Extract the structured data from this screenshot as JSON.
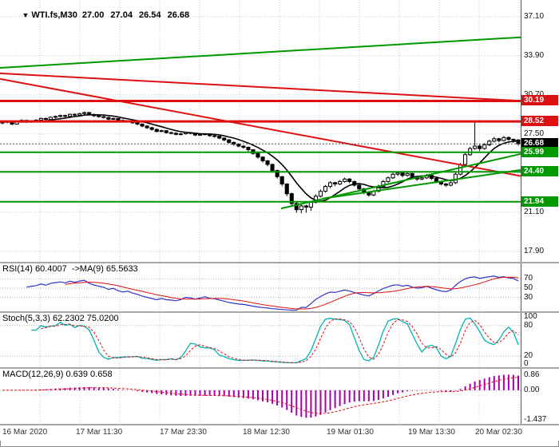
{
  "header": {
    "symbol": "WTI.fs,M30",
    "ohlc": "27.00 27.04 26.54 26.68"
  },
  "pane_labels": {
    "rsi": "RSI(14) 60.4007  ->MA(9) 65.5633",
    "stoch": "Stoch(5,3,3) 62.2302 75.0200",
    "macd": "MACD(12,26,9) 0.639 0.658"
  },
  "colors": {
    "red": "#dd1111",
    "green": "#009900",
    "grid": "#c9c9c9",
    "rsi": "#3333cc",
    "stoch": "#00b3b3",
    "macd": "#a800a8",
    "bull": "#ffffff",
    "bear": "#000000",
    "ma": "#000000"
  },
  "chart_data": {
    "type": "candlestick",
    "symbol": "WTI.fs,M30",
    "timeframe": "M30",
    "title": "WTI.fs,M30 27.00 27.04 26.54 26.68",
    "price_top": 38.45,
    "price_bottom": 16.9,
    "y_ticks": [
      37.1,
      33.9,
      30.7,
      27.5,
      24.3,
      21.1,
      17.9
    ],
    "time_labels": [
      "16 Mar 2020",
      "17 Mar 11:30",
      "17 Mar 23:30",
      "18 Mar 12:30",
      "19 Mar 01:30",
      "19 Mar 13:30",
      "20 Mar 02:30"
    ],
    "time_positions": [
      0.004,
      0.145,
      0.306,
      0.467,
      0.628,
      0.784,
      0.912
    ],
    "ma_period": 8,
    "levels": [
      {
        "label": "30.19",
        "value": 30.19,
        "color": "red"
      },
      {
        "label": "28.52",
        "value": 28.52,
        "color": "red"
      },
      {
        "label": "26.68",
        "value": 26.68,
        "color": "black",
        "style": "current"
      },
      {
        "label": "25.99",
        "value": 25.99,
        "color": "green"
      },
      {
        "label": "24.40",
        "value": 24.4,
        "color": "green"
      },
      {
        "label": "21.94",
        "value": 21.94,
        "color": "green"
      }
    ],
    "trendlines": [
      {
        "x1": 0,
        "p1": 32.9,
        "x2": 1,
        "p2": 35.4,
        "color": "green"
      },
      {
        "x1": 0,
        "p1": 32.45,
        "x2": 1,
        "p2": 30.2,
        "color": "red"
      },
      {
        "x1": 0,
        "p1": 32.0,
        "x2": 1,
        "p2": 24.05,
        "color": "red"
      },
      {
        "x1": 0.54,
        "p1": 21.4,
        "x2": 1,
        "p2": 25.85,
        "color": "green"
      },
      {
        "x1": 0.62,
        "p1": 22.2,
        "x2": 1,
        "p2": 24.55,
        "color": "green"
      }
    ],
    "indicators": {
      "rsi": {
        "period": 14,
        "ma_period": 9,
        "value": 60.4007,
        "ma_value": 65.5633,
        "ticks": [
          70,
          50,
          30
        ]
      },
      "stoch": {
        "k_period": 5,
        "slowing": 3,
        "d_period": 3,
        "k_value": 62.2302,
        "d_value": 75.02,
        "ticks": [
          100,
          80,
          20,
          0
        ],
        "grid_ticks": [
          80,
          20
        ]
      },
      "macd": {
        "fast": 12,
        "slow": 26,
        "signal": 9,
        "macd_value": 0.639,
        "signal_value": 0.658,
        "tick_top": "0.86",
        "tick_zero": "0.00",
        "tick_bottom": "-1.437"
      }
    },
    "ohlc": [
      [
        28.4,
        28.55,
        28.28,
        28.45
      ],
      [
        28.45,
        28.6,
        28.35,
        28.52
      ],
      [
        28.52,
        28.58,
        28.22,
        28.3
      ],
      [
        28.3,
        28.52,
        28.24,
        28.46
      ],
      [
        28.46,
        28.68,
        28.4,
        28.6
      ],
      [
        28.6,
        28.66,
        28.38,
        28.48
      ],
      [
        28.48,
        28.62,
        28.4,
        28.56
      ],
      [
        28.56,
        28.7,
        28.46,
        28.62
      ],
      [
        28.62,
        28.84,
        28.55,
        28.76
      ],
      [
        28.76,
        28.82,
        28.58,
        28.68
      ],
      [
        28.68,
        28.92,
        28.6,
        28.86
      ],
      [
        28.86,
        29.0,
        28.76,
        28.92
      ],
      [
        28.92,
        29.08,
        28.84,
        29.0
      ],
      [
        29.0,
        29.06,
        28.82,
        28.94
      ],
      [
        28.94,
        29.16,
        28.88,
        29.1
      ],
      [
        29.1,
        29.18,
        28.94,
        29.04
      ],
      [
        29.04,
        29.22,
        28.98,
        29.16
      ],
      [
        29.16,
        29.32,
        29.06,
        29.24
      ],
      [
        29.24,
        29.3,
        29.0,
        29.08
      ],
      [
        29.08,
        29.16,
        28.88,
        28.98
      ],
      [
        28.98,
        29.06,
        28.82,
        28.9
      ],
      [
        28.9,
        28.98,
        28.76,
        28.84
      ],
      [
        28.84,
        28.9,
        28.62,
        28.7
      ],
      [
        28.7,
        28.84,
        28.64,
        28.76
      ],
      [
        28.76,
        28.8,
        28.52,
        28.6
      ],
      [
        28.6,
        28.68,
        28.42,
        28.5
      ],
      [
        28.5,
        28.62,
        28.44,
        28.55
      ],
      [
        28.55,
        28.6,
        28.32,
        28.4
      ],
      [
        28.4,
        28.48,
        28.2,
        28.3
      ],
      [
        28.3,
        28.36,
        28.04,
        28.14
      ],
      [
        28.14,
        28.22,
        27.9,
        28.0
      ],
      [
        28.0,
        28.08,
        27.76,
        27.86
      ],
      [
        27.86,
        27.94,
        27.62,
        27.7
      ],
      [
        27.7,
        27.84,
        27.64,
        27.76
      ],
      [
        27.76,
        27.8,
        27.52,
        27.6
      ],
      [
        27.6,
        27.68,
        27.46,
        27.55
      ],
      [
        27.55,
        27.62,
        27.38,
        27.45
      ],
      [
        27.45,
        27.58,
        27.4,
        27.5
      ],
      [
        27.5,
        27.68,
        27.44,
        27.6
      ],
      [
        27.6,
        27.66,
        27.46,
        27.55
      ],
      [
        27.55,
        27.6,
        27.32,
        27.4
      ],
      [
        27.4,
        27.52,
        27.34,
        27.45
      ],
      [
        27.45,
        27.56,
        27.38,
        27.5
      ],
      [
        27.5,
        27.54,
        27.26,
        27.35
      ],
      [
        27.35,
        27.42,
        27.2,
        27.3
      ],
      [
        27.3,
        27.36,
        27.06,
        27.15
      ],
      [
        27.15,
        27.22,
        26.9,
        27.0
      ],
      [
        27.0,
        27.08,
        26.7,
        26.8
      ],
      [
        26.8,
        26.88,
        26.54,
        26.65
      ],
      [
        26.65,
        26.72,
        26.4,
        26.5
      ],
      [
        26.5,
        26.56,
        26.28,
        26.4
      ],
      [
        26.4,
        26.46,
        26.06,
        26.2
      ],
      [
        26.2,
        26.26,
        25.78,
        25.9
      ],
      [
        25.9,
        25.96,
        25.46,
        25.6
      ],
      [
        25.6,
        25.66,
        25.16,
        25.3
      ],
      [
        25.3,
        25.36,
        24.84,
        25.0
      ],
      [
        25.0,
        25.06,
        24.34,
        24.5
      ],
      [
        24.5,
        24.58,
        23.84,
        24.0
      ],
      [
        24.0,
        24.06,
        23.22,
        23.4
      ],
      [
        23.4,
        23.46,
        22.4,
        22.6
      ],
      [
        22.6,
        22.7,
        21.55,
        21.8
      ],
      [
        21.8,
        21.95,
        21.05,
        21.3
      ],
      [
        21.3,
        21.75,
        21.0,
        21.6
      ],
      [
        21.6,
        21.7,
        21.05,
        21.5
      ],
      [
        21.5,
        22.0,
        21.2,
        21.9
      ],
      [
        21.9,
        22.55,
        21.8,
        22.4
      ],
      [
        22.4,
        22.95,
        22.3,
        22.8
      ],
      [
        22.8,
        23.32,
        22.7,
        23.2
      ],
      [
        23.2,
        23.62,
        23.05,
        23.5
      ],
      [
        23.5,
        23.58,
        23.22,
        23.4
      ],
      [
        23.4,
        23.72,
        23.3,
        23.6
      ],
      [
        23.6,
        23.92,
        23.5,
        23.8
      ],
      [
        23.8,
        23.88,
        23.46,
        23.6
      ],
      [
        23.6,
        23.68,
        23.18,
        23.3
      ],
      [
        23.3,
        23.38,
        22.86,
        23.0
      ],
      [
        23.0,
        23.08,
        22.56,
        22.7
      ],
      [
        22.7,
        22.78,
        22.36,
        22.5
      ],
      [
        22.5,
        22.92,
        22.4,
        22.8
      ],
      [
        22.8,
        23.34,
        22.7,
        23.2
      ],
      [
        23.2,
        23.72,
        23.1,
        23.6
      ],
      [
        23.6,
        24.02,
        23.5,
        23.9
      ],
      [
        23.9,
        24.32,
        23.8,
        24.2
      ],
      [
        24.2,
        24.42,
        24.05,
        24.3
      ],
      [
        24.3,
        24.38,
        23.95,
        24.1
      ],
      [
        24.1,
        24.36,
        24.0,
        24.25
      ],
      [
        24.25,
        24.32,
        23.88,
        24.0
      ],
      [
        24.0,
        24.08,
        23.66,
        23.8
      ],
      [
        23.8,
        24.02,
        23.7,
        23.9
      ],
      [
        23.9,
        24.22,
        23.8,
        24.1
      ],
      [
        24.1,
        24.16,
        23.72,
        23.85
      ],
      [
        23.85,
        23.92,
        23.46,
        23.6
      ],
      [
        23.6,
        23.66,
        23.28,
        23.4
      ],
      [
        23.4,
        23.48,
        23.16,
        23.3
      ],
      [
        23.3,
        23.62,
        23.2,
        23.5
      ],
      [
        23.5,
        24.34,
        23.4,
        24.2
      ],
      [
        24.2,
        25.12,
        24.1,
        25.0
      ],
      [
        25.0,
        25.95,
        24.9,
        25.8
      ],
      [
        25.8,
        26.45,
        25.7,
        26.3
      ],
      [
        26.3,
        28.6,
        26.2,
        26.5
      ],
      [
        26.5,
        26.7,
        26.1,
        26.3
      ],
      [
        26.3,
        26.75,
        26.2,
        26.6
      ],
      [
        26.6,
        27.02,
        26.5,
        26.9
      ],
      [
        26.9,
        27.25,
        26.8,
        27.1
      ],
      [
        27.1,
        27.18,
        26.8,
        26.95
      ],
      [
        26.95,
        27.32,
        26.88,
        27.2
      ],
      [
        27.2,
        27.28,
        26.92,
        27.05
      ],
      [
        27.05,
        27.12,
        26.76,
        27.0
      ],
      [
        27.0,
        27.04,
        26.54,
        26.68
      ]
    ]
  }
}
